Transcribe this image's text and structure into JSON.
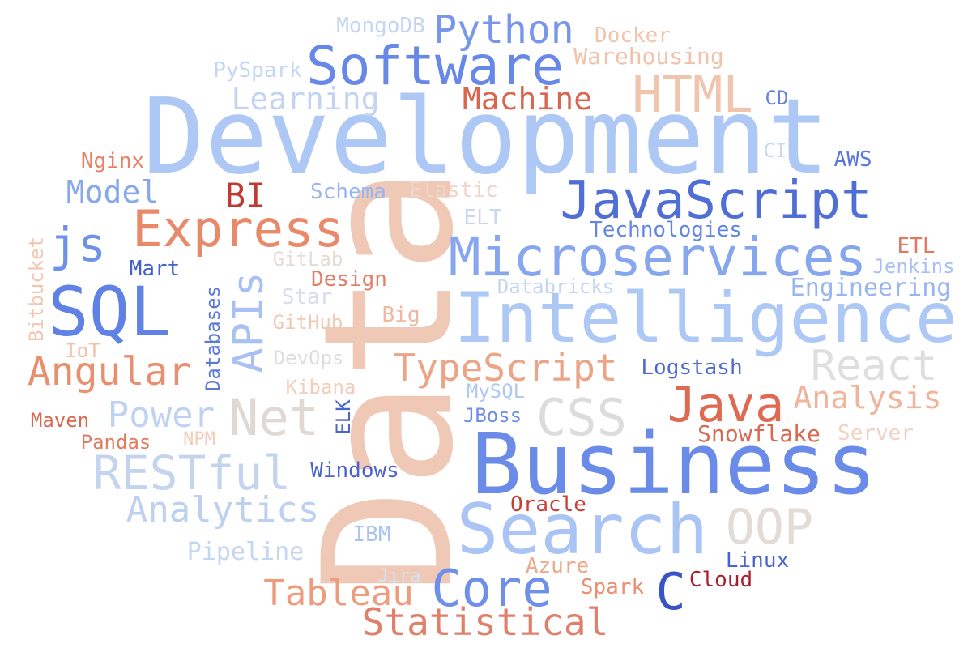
{
  "words": [
    {
      "text": "Data",
      "color": "#f0c8b6"
    },
    {
      "text": "Development",
      "color": "#aec8f6"
    },
    {
      "text": "Business",
      "color": "#6a8ce8"
    },
    {
      "text": "Intelligence",
      "color": "#aec8f6"
    },
    {
      "text": "Search",
      "color": "#aac4f6"
    },
    {
      "text": "Software",
      "color": "#6788e6"
    },
    {
      "text": "Microservices",
      "color": "#86a6ee"
    },
    {
      "text": "JavaScript",
      "color": "#506fd6"
    },
    {
      "text": "SQL",
      "color": "#5f82e4"
    },
    {
      "text": "Express",
      "color": "#e88a6a"
    },
    {
      "text": "Python",
      "color": "#7896ea"
    },
    {
      "text": "HTML",
      "color": "#f0c4ad"
    },
    {
      "text": "Java",
      "color": "#de6a52"
    },
    {
      "text": "Core",
      "color": "#6e90ea"
    },
    {
      "text": "Net",
      "color": "#e0d8d3"
    },
    {
      "text": "CSS",
      "color": "#dcdcdc"
    },
    {
      "text": "RESTful",
      "color": "#c4d4ee"
    },
    {
      "text": "APIs",
      "color": "#a8c0f4"
    },
    {
      "text": "Angular",
      "color": "#e8906e"
    },
    {
      "text": "TypeScript",
      "color": "#eca486"
    },
    {
      "text": "React",
      "color": "#dedede"
    },
    {
      "text": "OOP",
      "color": "#e2dbd6"
    },
    {
      "text": "Statistical",
      "color": "#e0806a"
    },
    {
      "text": "Tableau",
      "color": "#ee9c7e"
    },
    {
      "text": "Analytics",
      "color": "#bed0f0"
    },
    {
      "text": "js",
      "color": "#6e92e8"
    },
    {
      "text": "C",
      "color": "#3a54c8"
    },
    {
      "text": "Power",
      "color": "#c0d2f2"
    },
    {
      "text": "Analysis",
      "color": "#f0b49a"
    },
    {
      "text": "Machine",
      "color": "#d86650"
    },
    {
      "text": "Learning",
      "color": "#c2d4f2"
    },
    {
      "text": "Model",
      "color": "#88a8ee"
    },
    {
      "text": "BI",
      "color": "#c03a34"
    },
    {
      "text": "Engineering",
      "color": "#98b6f0"
    },
    {
      "text": "Technologies",
      "color": "#6486e2"
    },
    {
      "text": "Pipeline",
      "color": "#c4d6f2"
    },
    {
      "text": "Docker",
      "color": "#f2c4ac"
    },
    {
      "text": "Warehousing",
      "color": "#f0c2aa"
    },
    {
      "text": "MongoDB",
      "color": "#c4d6f4"
    },
    {
      "text": "PySpark",
      "color": "#c4d6f4"
    },
    {
      "text": "Schema",
      "color": "#98b6f0"
    },
    {
      "text": "Elastic",
      "color": "#eed6cc"
    },
    {
      "text": "ELT",
      "color": "#c6d8f2"
    },
    {
      "text": "Nginx",
      "color": "#e88266"
    },
    {
      "text": "Mart",
      "color": "#4460cc"
    },
    {
      "text": "GitLab",
      "color": "#e6dcd6"
    },
    {
      "text": "Star",
      "color": "#d4deec"
    },
    {
      "text": "Design",
      "color": "#e0806a"
    },
    {
      "text": "GitHub",
      "color": "#f2c8b4"
    },
    {
      "text": "Big",
      "color": "#f0b89e"
    },
    {
      "text": "DevOps",
      "color": "#e0dcdc"
    },
    {
      "text": "Kibana",
      "color": "#f2cdbc"
    },
    {
      "text": "MySQL",
      "color": "#b0c8f2"
    },
    {
      "text": "JBoss",
      "color": "#6e8ee2"
    },
    {
      "text": "Windows",
      "color": "#4864cc"
    },
    {
      "text": "Logstash",
      "color": "#4e6ad2"
    },
    {
      "text": "Snowflake",
      "color": "#d66a52"
    },
    {
      "text": "Server",
      "color": "#f2d2c4"
    },
    {
      "text": "Databricks",
      "color": "#c4d6f2"
    },
    {
      "text": "Jenkins",
      "color": "#a8c0f4"
    },
    {
      "text": "ETL",
      "color": "#e07a62"
    },
    {
      "text": "AWS",
      "color": "#5a78d8"
    },
    {
      "text": "CD",
      "color": "#6680dc"
    },
    {
      "text": "CI",
      "color": "#c6d8f4"
    },
    {
      "text": "Oracle",
      "color": "#c84034"
    },
    {
      "text": "IBM",
      "color": "#aac4f2"
    },
    {
      "text": "Azure",
      "color": "#eea88c"
    },
    {
      "text": "Linux",
      "color": "#4a66ce"
    },
    {
      "text": "Cloud",
      "color": "#a8202e"
    },
    {
      "text": "Spark",
      "color": "#e89070"
    },
    {
      "text": "Jira",
      "color": "#d6e0f0"
    },
    {
      "text": "NPM",
      "color": "#f2ccb8"
    },
    {
      "text": "Pandas",
      "color": "#e07c60"
    },
    {
      "text": "Maven",
      "color": "#d86a52"
    },
    {
      "text": "IoT",
      "color": "#f0c2aa"
    },
    {
      "text": "Bitbucket",
      "color": "#f2c8b4"
    },
    {
      "text": "Databases",
      "color": "#5a7ad8"
    },
    {
      "text": "ELK",
      "color": "#4a66ce"
    }
  ]
}
